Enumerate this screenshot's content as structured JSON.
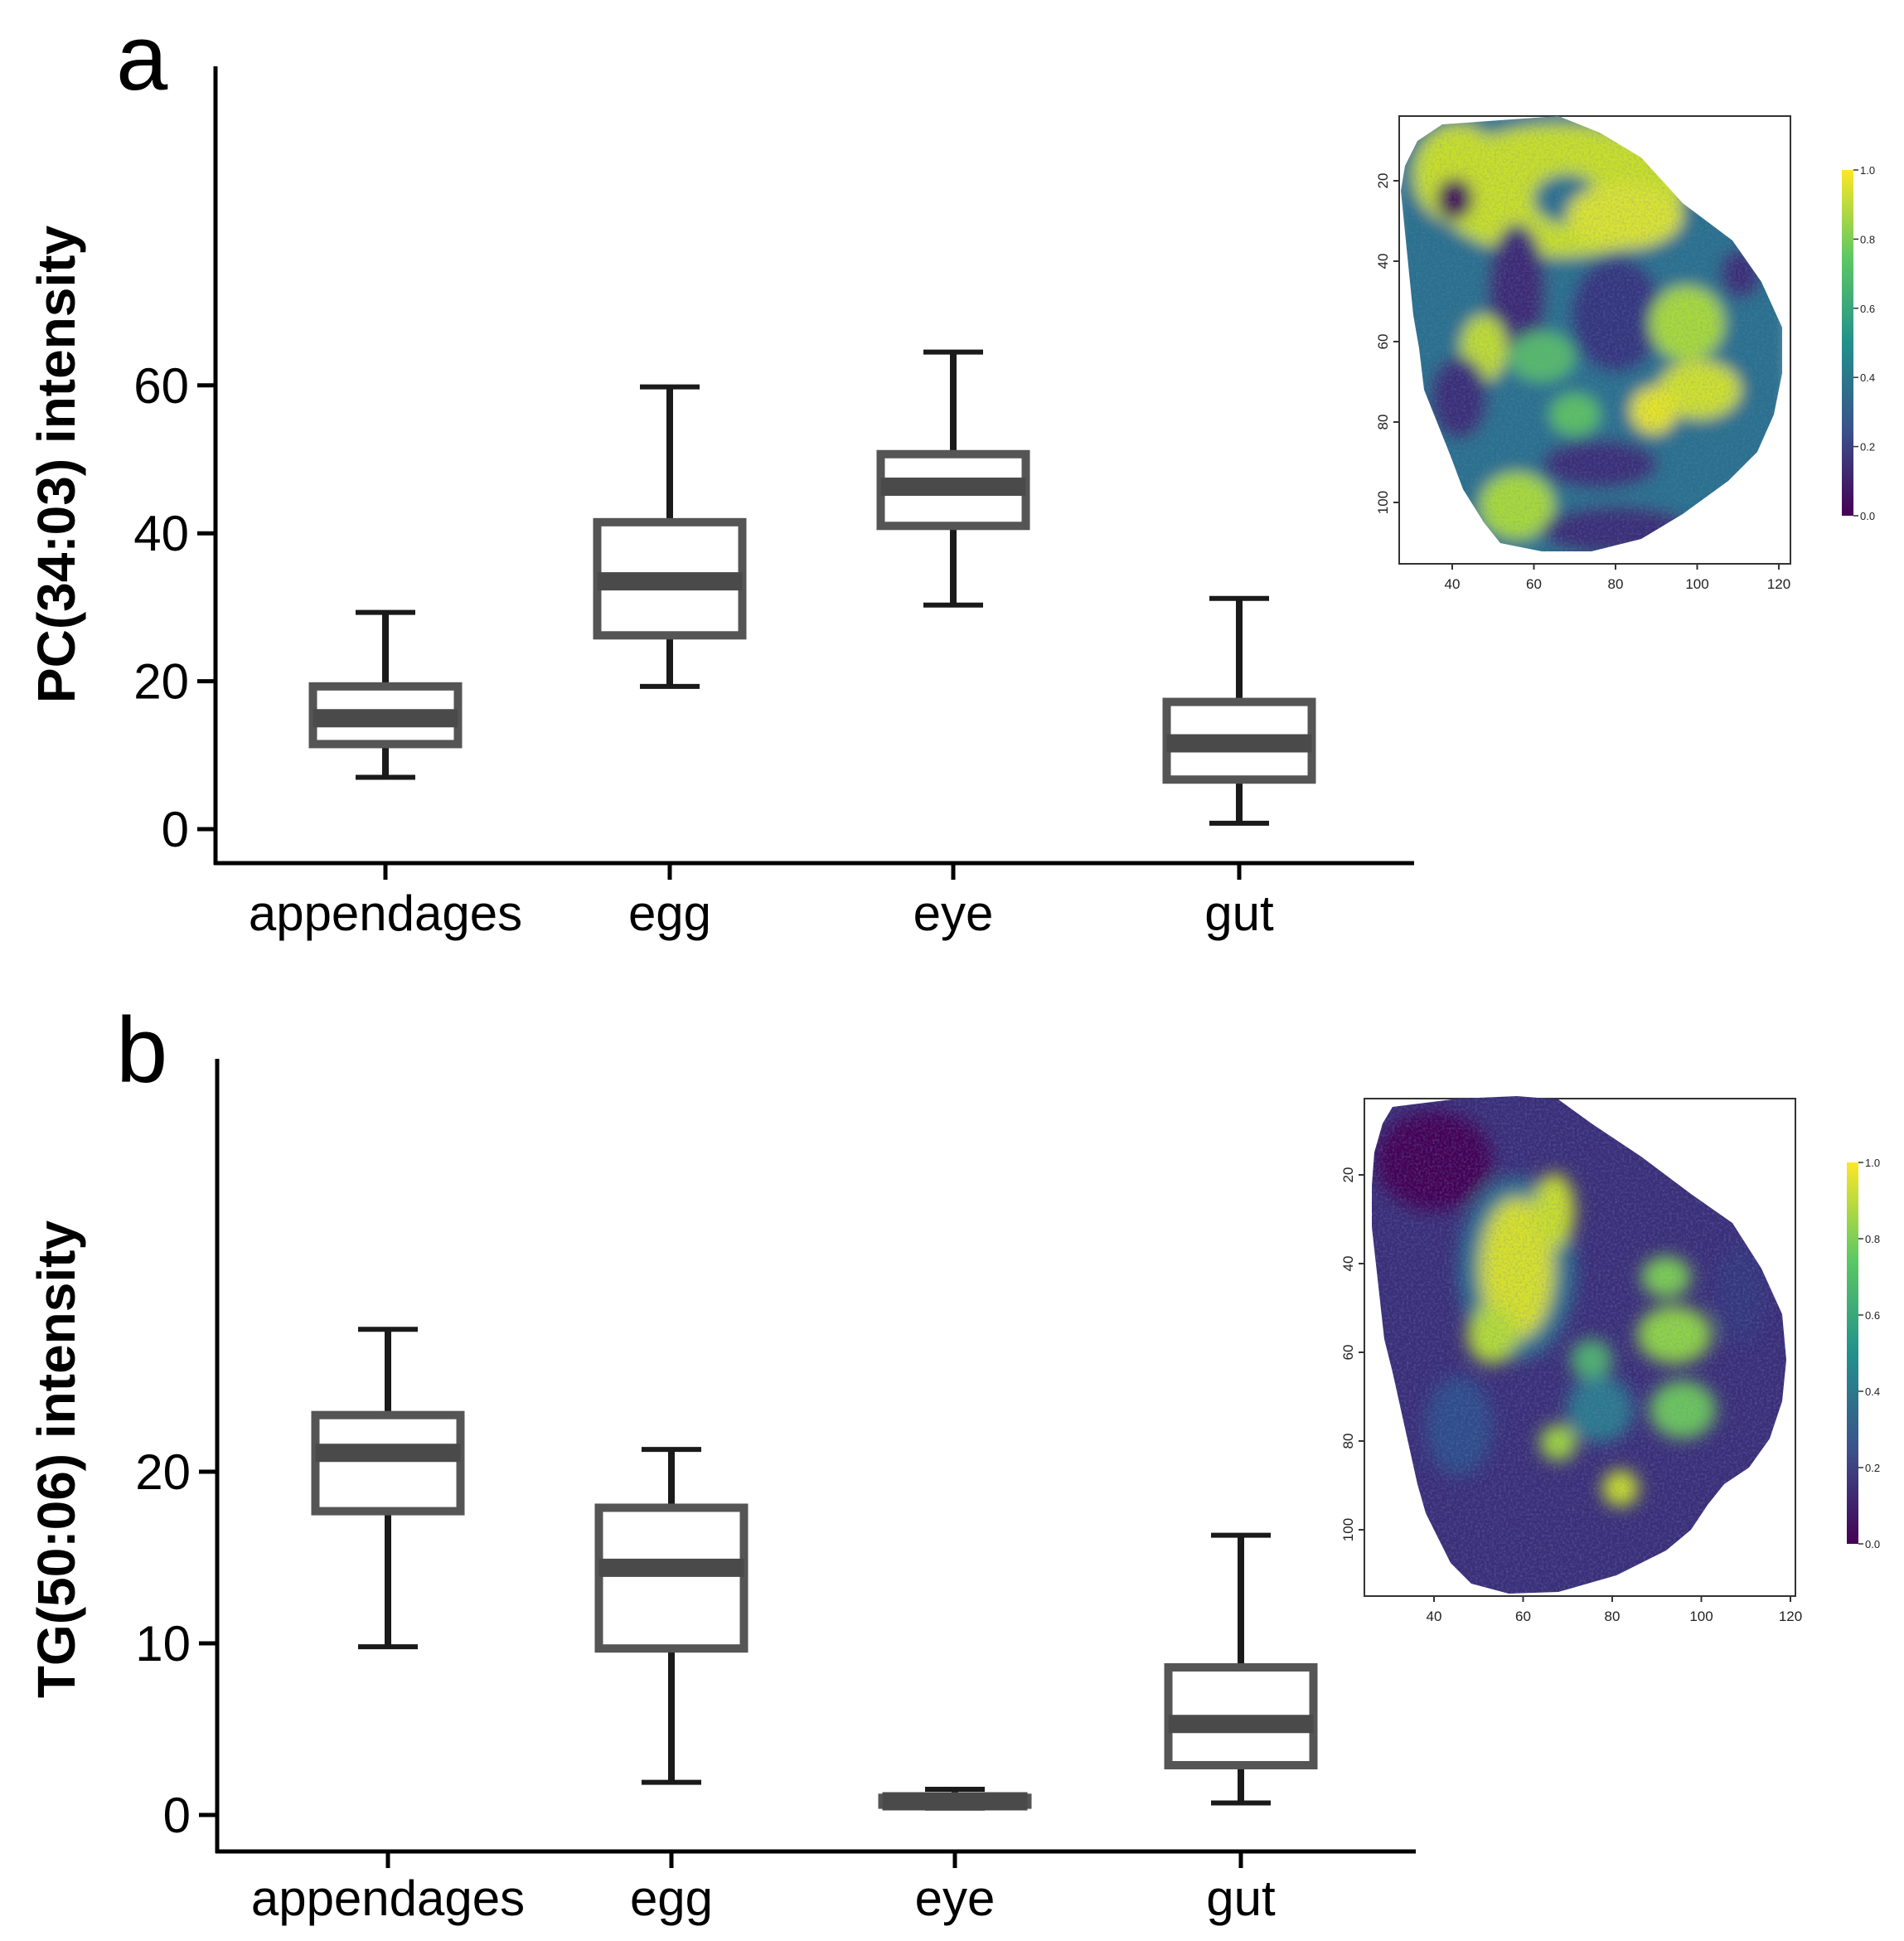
{
  "chart_data": [
    {
      "panel": "a",
      "type": "box",
      "ylabel": "PC(34:03) intensity",
      "categories": [
        "appendages",
        "egg",
        "eye",
        "gut"
      ],
      "yticks": [
        0,
        20,
        40,
        60
      ],
      "ylim": [
        -2.5,
        69
      ],
      "boxes": [
        {
          "category": "appendages",
          "whisker_low": 7.0,
          "q1": 11.5,
          "median": 15.0,
          "q3": 19.3,
          "whisker_high": 29.3
        },
        {
          "category": "egg",
          "whisker_low": 19.3,
          "q1": 26.2,
          "median": 33.5,
          "q3": 41.5,
          "whisker_high": 59.8
        },
        {
          "category": "eye",
          "whisker_low": 30.3,
          "q1": 41.0,
          "median": 46.3,
          "q3": 50.7,
          "whisker_high": 64.5
        },
        {
          "category": "gut",
          "whisker_low": 0.8,
          "q1": 6.7,
          "median": 11.6,
          "q3": 17.2,
          "whisker_high": 31.2
        }
      ],
      "inset": {
        "type": "heatmap",
        "colormap": "viridis",
        "xticks": [
          40,
          60,
          80,
          100,
          120
        ],
        "yticks": [
          20,
          40,
          60,
          80,
          100
        ],
        "colorbar_ticks": [
          "0.0",
          "0.2",
          "0.4",
          "0.6",
          "0.8",
          "1.0"
        ]
      }
    },
    {
      "panel": "b",
      "type": "box",
      "ylabel": "TG(50:06) intensity",
      "categories": [
        "appendages",
        "egg",
        "eye",
        "gut"
      ],
      "yticks": [
        0,
        10,
        20
      ],
      "ylim": [
        -1,
        28.5
      ],
      "boxes": [
        {
          "category": "appendages",
          "whisker_low": 9.8,
          "q1": 17.7,
          "median": 21.1,
          "q3": 23.3,
          "whisker_high": 28.3
        },
        {
          "category": "egg",
          "whisker_low": 1.9,
          "q1": 9.7,
          "median": 14.4,
          "q3": 17.9,
          "whisker_high": 21.3
        },
        {
          "category": "eye",
          "whisker_low": 0.4,
          "q1": 0.6,
          "median": 0.8,
          "q3": 1.0,
          "whisker_high": 1.5
        },
        {
          "category": "gut",
          "whisker_low": 0.7,
          "q1": 2.9,
          "median": 5.3,
          "q3": 8.6,
          "whisker_high": 16.3
        }
      ],
      "inset": {
        "type": "heatmap",
        "colormap": "viridis",
        "xticks": [
          40,
          60,
          80,
          100,
          120
        ],
        "yticks": [
          20,
          40,
          60,
          80,
          100
        ],
        "colorbar_ticks": [
          "0.0",
          "0.2",
          "0.4",
          "0.6",
          "0.8",
          "1.0"
        ]
      }
    }
  ],
  "colors": {
    "axis": "#000000",
    "whisker": "#1a1a1a",
    "box_stroke": "#555555",
    "median": "#4a4a4a",
    "viridis_low": "#440154",
    "viridis_mid": "#21918c",
    "viridis_high": "#fde725"
  }
}
